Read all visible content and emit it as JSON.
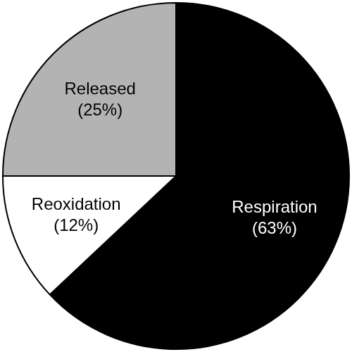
{
  "chart_data": {
    "type": "pie",
    "categories": [
      "Respiration",
      "Reoxidation",
      "Released"
    ],
    "values": [
      63,
      12,
      25
    ],
    "value_labels": [
      "(63%)",
      "(12%)",
      "(25%)"
    ],
    "colors": [
      "#000000",
      "#ffffff",
      "#b3b3b3"
    ],
    "data_labels": true
  }
}
